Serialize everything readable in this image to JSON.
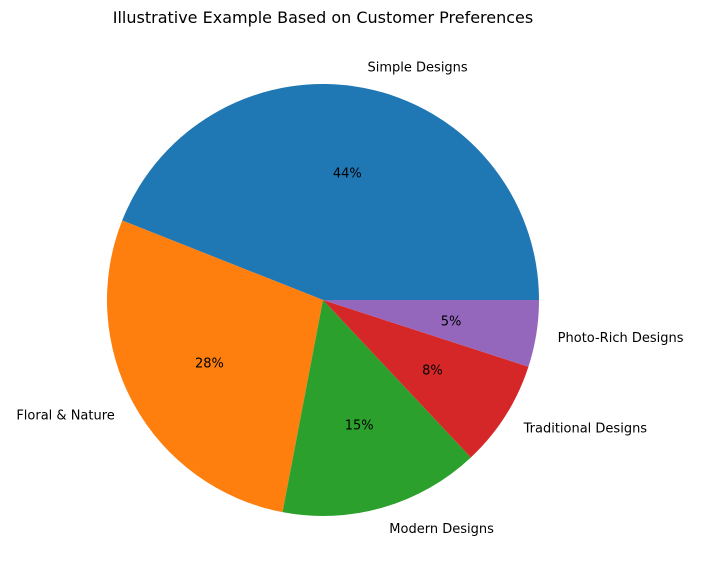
{
  "chart_data": {
    "type": "pie",
    "title": "Illustrative Example Based on Customer Preferences",
    "slices": [
      {
        "label": "Simple Designs",
        "value": 44,
        "pct_label": "44%",
        "color": "#1f77b4"
      },
      {
        "label": "Floral & Nature",
        "value": 28,
        "pct_label": "28%",
        "color": "#ff7f0e"
      },
      {
        "label": "Modern Designs",
        "value": 15,
        "pct_label": "15%",
        "color": "#2ca02c"
      },
      {
        "label": "Traditional Designs",
        "value": 8,
        "pct_label": "8%",
        "color": "#d62728"
      },
      {
        "label": "Photo-Rich Designs",
        "value": 5,
        "pct_label": "5%",
        "color": "#9467bd"
      }
    ]
  }
}
